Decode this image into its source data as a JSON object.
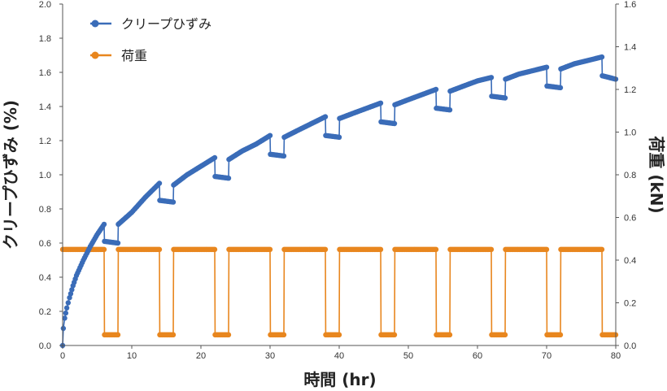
{
  "chart_data": {
    "type": "line",
    "xlabel": "時間 (hr)",
    "ylabel": "クリープひずみ (%)",
    "y2label": "荷重 (kN)",
    "xlim": [
      0,
      80
    ],
    "ylim": [
      0,
      2.0
    ],
    "y2lim": [
      0,
      1.6
    ],
    "xticks": [
      "0",
      "10",
      "20",
      "30",
      "40",
      "50",
      "60",
      "70",
      "80"
    ],
    "yticks": [
      "0.0",
      "0.2",
      "0.4",
      "0.6",
      "0.8",
      "1.0",
      "1.2",
      "1.4",
      "1.6",
      "1.8",
      "2.0"
    ],
    "y2ticks": [
      "0.0",
      "0.2",
      "0.4",
      "0.6",
      "0.8",
      "1.0",
      "1.2",
      "1.4",
      "1.6"
    ],
    "grid": false,
    "legend_position": "top-left",
    "series": [
      {
        "name": "クリープひずみ",
        "axis": "left",
        "color": "#3a6cb8",
        "x": [
          0,
          0.1,
          0.3,
          0.6,
          1,
          1.5,
          2,
          3,
          4,
          5,
          6,
          6.05,
          8,
          8.05,
          10,
          12,
          14,
          14.05,
          16,
          16.05,
          18,
          20,
          22,
          22.05,
          24,
          24.05,
          26,
          28,
          30,
          30.05,
          32,
          32.05,
          34,
          36,
          38,
          38.05,
          40,
          40.05,
          42,
          44,
          46,
          46.05,
          48,
          48.05,
          50,
          52,
          54,
          54.05,
          56,
          56.05,
          58,
          60,
          62,
          62.05,
          64,
          64.05,
          66,
          68,
          70,
          70.05,
          72,
          72.05,
          74,
          76,
          78,
          78.05,
          80
        ],
        "values": [
          0.0,
          0.1,
          0.16,
          0.22,
          0.28,
          0.35,
          0.41,
          0.5,
          0.58,
          0.65,
          0.71,
          0.61,
          0.6,
          0.71,
          0.78,
          0.87,
          0.95,
          0.85,
          0.84,
          0.94,
          1.0,
          1.05,
          1.1,
          0.99,
          0.98,
          1.09,
          1.14,
          1.18,
          1.23,
          1.12,
          1.11,
          1.22,
          1.26,
          1.3,
          1.34,
          1.23,
          1.22,
          1.33,
          1.36,
          1.39,
          1.42,
          1.31,
          1.3,
          1.41,
          1.44,
          1.47,
          1.5,
          1.39,
          1.38,
          1.49,
          1.52,
          1.55,
          1.57,
          1.46,
          1.45,
          1.56,
          1.59,
          1.61,
          1.63,
          1.52,
          1.51,
          1.62,
          1.65,
          1.67,
          1.69,
          1.58,
          1.56
        ]
      },
      {
        "name": "荷重",
        "axis": "right",
        "color": "#e8861e",
        "x": [
          0,
          6,
          6.05,
          8,
          8.05,
          14,
          14.05,
          16,
          16.05,
          22,
          22.05,
          24,
          24.05,
          30,
          30.05,
          32,
          32.05,
          38,
          38.05,
          40,
          40.05,
          46,
          46.05,
          48,
          48.05,
          54,
          54.05,
          56,
          56.05,
          62,
          62.05,
          64,
          64.05,
          70,
          70.05,
          72,
          72.05,
          78,
          78.05,
          80
        ],
        "values": [
          0.45,
          0.45,
          0.05,
          0.05,
          0.45,
          0.45,
          0.05,
          0.05,
          0.45,
          0.45,
          0.05,
          0.05,
          0.45,
          0.45,
          0.05,
          0.05,
          0.45,
          0.45,
          0.05,
          0.05,
          0.45,
          0.45,
          0.05,
          0.05,
          0.45,
          0.45,
          0.05,
          0.05,
          0.45,
          0.45,
          0.05,
          0.05,
          0.45,
          0.45,
          0.05,
          0.05,
          0.45,
          0.45,
          0.05,
          0.05
        ]
      }
    ]
  }
}
